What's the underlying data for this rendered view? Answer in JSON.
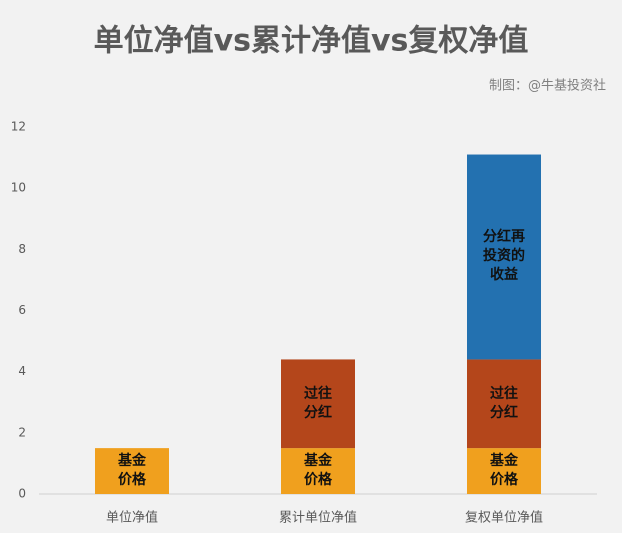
{
  "chart_data": {
    "type": "bar",
    "stacked": true,
    "title": "单位净值vs累计净值vs复权净值",
    "subtitle": "制图：@牛基投资社",
    "categories": [
      "单位净值",
      "累计单位净值",
      "复权单位净值"
    ],
    "series": [
      {
        "name": "基金价格",
        "color": "#f0a01e",
        "values": [
          1.5,
          1.5,
          1.5
        ]
      },
      {
        "name": "过往分红",
        "color": "#b4461b",
        "values": [
          null,
          2.9,
          2.9
        ]
      },
      {
        "name": "分红再投资的收益",
        "color": "#2371b0",
        "values": [
          null,
          null,
          6.7
        ]
      }
    ],
    "ylim": [
      0,
      12
    ],
    "yticks": [
      0,
      2,
      4,
      6,
      8,
      10,
      12
    ],
    "grid": false
  }
}
